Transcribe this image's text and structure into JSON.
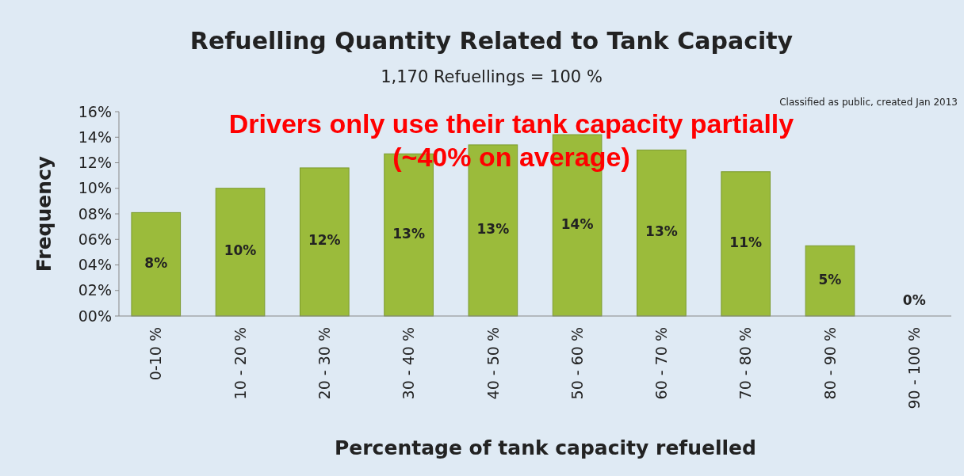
{
  "chart_data": {
    "type": "bar",
    "title": "Refuelling Quantity Related to Tank Capacity",
    "subtitle": "1,170 Refuellings = 100 %",
    "xlabel": "Percentage of tank capacity refuelled",
    "ylabel": "Frequency",
    "categories": [
      "0-10 %",
      "10 - 20 %",
      "20 - 30 %",
      "30 - 40 %",
      "40 - 50 %",
      "50 - 60 %",
      "60 - 70 %",
      "70 - 80 %",
      "80 - 90 %",
      "90 - 100 %"
    ],
    "values": [
      8.1,
      10.0,
      11.6,
      12.7,
      13.4,
      14.2,
      13.0,
      11.3,
      5.5,
      0
    ],
    "value_labels": [
      "8%",
      "10%",
      "12%",
      "13%",
      "13%",
      "14%",
      "13%",
      "11%",
      "5%",
      "0%"
    ],
    "color": "#9bbb3b",
    "ylim": [
      0,
      16
    ],
    "yticks": [
      {
        "value": 0,
        "label": "00%"
      },
      {
        "value": 2,
        "label": "02%"
      },
      {
        "value": 4,
        "label": "04%"
      },
      {
        "value": 6,
        "label": "06%"
      },
      {
        "value": 8,
        "label": "08%"
      },
      {
        "value": 10,
        "label": "10%"
      },
      {
        "value": 12,
        "label": "12%"
      },
      {
        "value": 14,
        "label": "14%"
      },
      {
        "value": 16,
        "label": "16%"
      }
    ],
    "grid": false,
    "annotations": [
      "Classified as public, created Jan 2013",
      "Drivers only use their tank capacity partially\n(~40% on average)"
    ]
  }
}
